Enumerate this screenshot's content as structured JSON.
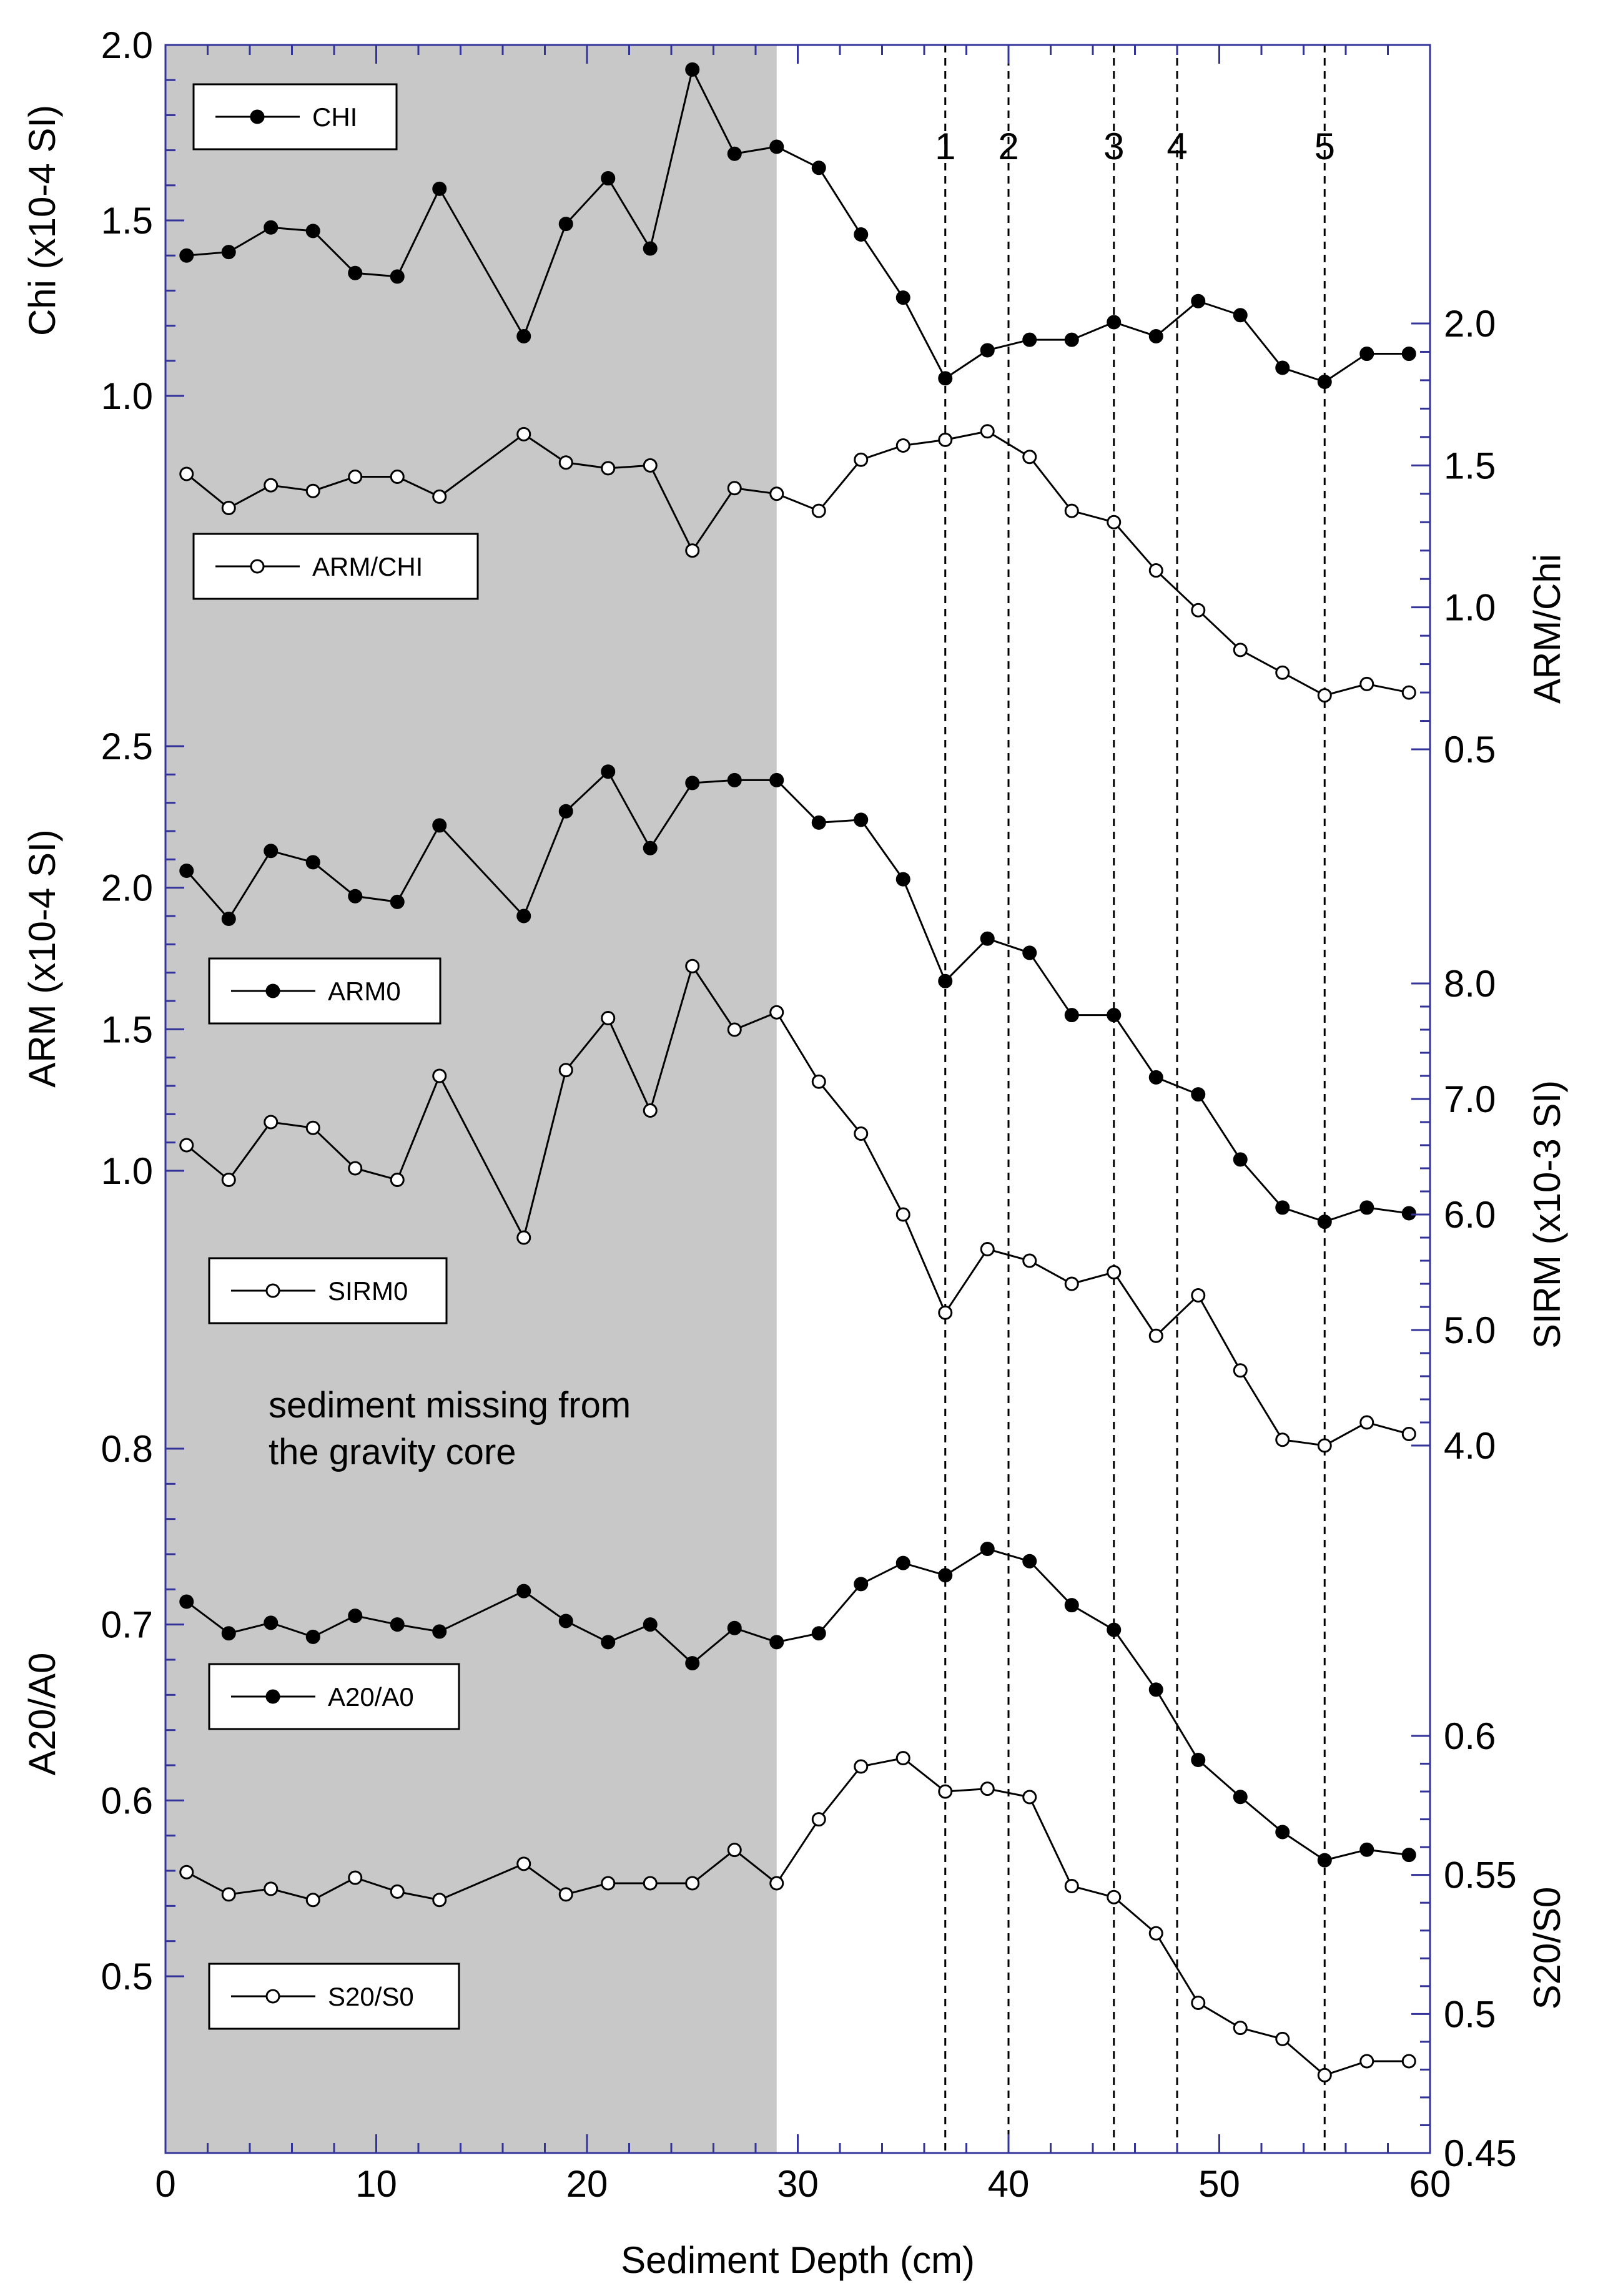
{
  "chart_data": {
    "type": "line",
    "x_axis": {
      "label": "Sediment Depth (cm)",
      "range": [
        0,
        60
      ],
      "ticks": [
        0,
        10,
        20,
        30,
        40,
        50,
        60
      ],
      "tick_labels": [
        "0",
        "10",
        "20",
        "30",
        "40",
        "50",
        "60"
      ]
    },
    "shaded_region": {
      "x_range": [
        0,
        29
      ],
      "note_lines": [
        "sediment missing from",
        "the gravity core"
      ]
    },
    "markers": [
      {
        "label": "1",
        "x": 37
      },
      {
        "label": "2",
        "x": 40
      },
      {
        "label": "3",
        "x": 45
      },
      {
        "label": "4",
        "x": 48
      },
      {
        "label": "5",
        "x": 55
      }
    ],
    "x": [
      1,
      3,
      5,
      7,
      9,
      11,
      13,
      17,
      19,
      21,
      23,
      25,
      27,
      29,
      31,
      33,
      35,
      37,
      39,
      41,
      43,
      45,
      47,
      49,
      51,
      53,
      55,
      57,
      59
    ],
    "panels": [
      {
        "left_axis": {
          "title": "Chi (x10-4 SI)",
          "range": [
            1.0,
            2.0
          ],
          "ticks": [
            1.0,
            1.5,
            2.0
          ],
          "tick_labels": [
            "1.0",
            "1.5",
            "2.0"
          ]
        },
        "right_axis": {
          "title": "ARM/Chi",
          "range": [
            0.5,
            2.0
          ],
          "ticks": [
            0.5,
            1.0,
            1.5,
            2.0
          ],
          "tick_labels": [
            "0.5",
            "1.0",
            "1.5",
            "2.0"
          ]
        },
        "series": [
          {
            "name": "CHI",
            "marker": "filled",
            "axis": "left",
            "values": [
              1.4,
              1.41,
              1.48,
              1.47,
              1.35,
              1.34,
              1.59,
              1.17,
              1.49,
              1.62,
              1.42,
              1.93,
              1.69,
              1.71,
              1.65,
              1.46,
              1.28,
              1.05,
              1.13,
              1.16,
              1.16,
              1.21,
              1.17,
              1.27,
              1.23,
              1.08,
              1.04,
              1.12,
              1.12
            ]
          },
          {
            "name": "ARM/CHI",
            "marker": "open",
            "axis": "right",
            "values": [
              1.47,
              1.35,
              1.43,
              1.41,
              1.46,
              1.46,
              1.39,
              1.61,
              1.51,
              1.49,
              1.5,
              1.2,
              1.42,
              1.4,
              1.34,
              1.52,
              1.57,
              1.59,
              1.62,
              1.53,
              1.34,
              1.3,
              1.13,
              0.99,
              0.85,
              0.77,
              0.69,
              0.73,
              0.7
            ]
          }
        ],
        "legend": [
          {
            "label": "CHI",
            "marker": "filled"
          },
          {
            "label": "ARM/CHI",
            "marker": "open"
          }
        ]
      },
      {
        "left_axis": {
          "title": "ARM (x10-4 SI)",
          "range": [
            1.0,
            2.5
          ],
          "ticks": [
            1.0,
            1.5,
            2.0,
            2.5
          ],
          "tick_labels": [
            "1.0",
            "1.5",
            "2.0",
            "2.5"
          ]
        },
        "right_axis": {
          "title": "SIRM (x10-3 SI)",
          "range": [
            4.0,
            8.0
          ],
          "ticks": [
            4.0,
            5.0,
            6.0,
            7.0,
            8.0
          ],
          "tick_labels": [
            "4.0",
            "5.0",
            "6.0",
            "7.0",
            "8.0"
          ]
        },
        "series": [
          {
            "name": "ARM0",
            "marker": "filled",
            "axis": "left",
            "values": [
              2.06,
              1.89,
              2.13,
              2.09,
              1.97,
              1.95,
              2.22,
              1.9,
              2.27,
              2.41,
              2.14,
              2.37,
              2.38,
              2.38,
              2.23,
              2.24,
              2.03,
              1.67,
              1.82,
              1.77,
              1.55,
              1.55,
              1.33,
              1.27,
              1.04,
              0.87,
              0.82,
              0.87,
              0.85
            ]
          },
          {
            "name": "SIRM0",
            "marker": "open",
            "axis": "right",
            "values": [
              6.6,
              6.3,
              6.8,
              6.75,
              6.4,
              6.3,
              7.2,
              5.8,
              7.25,
              7.7,
              6.9,
              8.15,
              7.6,
              7.75,
              7.15,
              6.7,
              6.0,
              5.15,
              5.7,
              5.6,
              5.4,
              5.5,
              4.95,
              5.3,
              4.65,
              4.05,
              4.0,
              4.2,
              4.1
            ]
          }
        ],
        "legend": [
          {
            "label": "ARM0",
            "marker": "filled"
          },
          {
            "label": "SIRM0",
            "marker": "open"
          }
        ]
      },
      {
        "left_axis": {
          "title": "A20/A0",
          "range": [
            0.5,
            0.8
          ],
          "ticks": [
            0.5,
            0.6,
            0.7,
            0.8
          ],
          "tick_labels": [
            "0.5",
            "0.6",
            "0.7",
            "0.8"
          ]
        },
        "right_axis": {
          "title": "S20/S0",
          "range": [
            0.45,
            0.6
          ],
          "ticks": [
            0.45,
            0.5,
            0.55,
            0.6
          ],
          "tick_labels": [
            "0.45",
            "0.5",
            "0.55",
            "0.6"
          ]
        },
        "series": [
          {
            "name": "A20/A0",
            "marker": "filled",
            "axis": "left",
            "values": [
              0.713,
              0.695,
              0.701,
              0.693,
              0.705,
              0.7,
              0.696,
              0.719,
              0.702,
              0.69,
              0.7,
              0.678,
              0.698,
              0.69,
              0.695,
              0.723,
              0.735,
              0.728,
              0.743,
              0.736,
              0.711,
              0.697,
              0.663,
              0.623,
              0.602,
              0.582,
              0.566,
              0.572,
              0.569
            ]
          },
          {
            "name": "S20/S0",
            "marker": "open",
            "axis": "right",
            "values": [
              0.551,
              0.543,
              0.545,
              0.541,
              0.549,
              0.544,
              0.541,
              0.554,
              0.543,
              0.547,
              0.547,
              0.547,
              0.559,
              0.547,
              0.57,
              0.589,
              0.592,
              0.58,
              0.581,
              0.578,
              0.546,
              0.542,
              0.529,
              0.504,
              0.495,
              0.491,
              0.478,
              0.483,
              0.483
            ]
          }
        ],
        "legend": [
          {
            "label": "A20/A0",
            "marker": "filled"
          },
          {
            "label": "S20/S0",
            "marker": "open"
          }
        ]
      }
    ]
  }
}
